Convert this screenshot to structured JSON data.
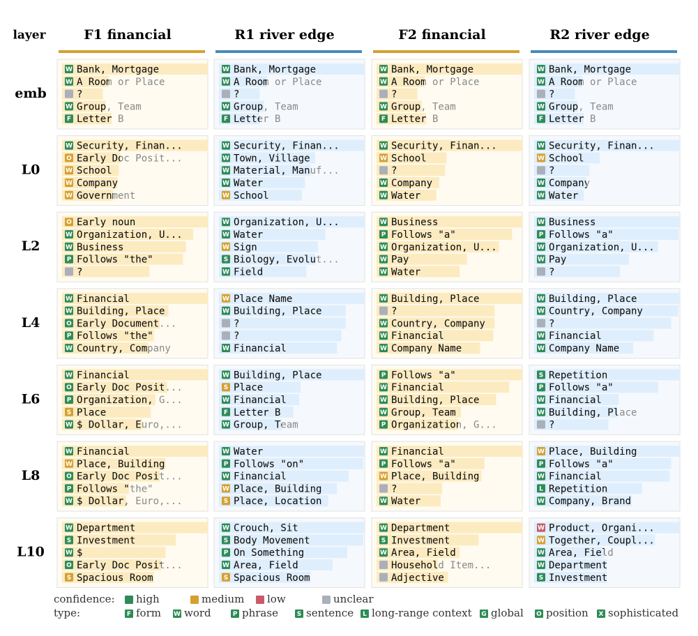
{
  "header": {
    "corner": "layer",
    "columns": [
      {
        "label": "F1 financial",
        "color": "#d4a030",
        "bar": "#fcebc0",
        "bg": "#fffbf0"
      },
      {
        "label": "R1 river edge",
        "color": "#4a8ab8",
        "bar": "#dfeefc",
        "bg": "#f5f9fd"
      },
      {
        "label": "F2 financial",
        "color": "#d4a030",
        "bar": "#fcebc0",
        "bg": "#fffbf0"
      },
      {
        "label": "R2 river edge",
        "color": "#4a8ab8",
        "bar": "#dfeefc",
        "bg": "#f5f9fd"
      }
    ]
  },
  "rows": [
    {
      "label": "emb",
      "cells": [
        [
          [
            "W",
            "high",
            "Bank, Mortgage",
            1.0
          ],
          [
            "W",
            "high",
            "A Room or Place",
            0.32
          ],
          [
            null,
            "unclear",
            "?",
            0.28
          ],
          [
            "W",
            "high",
            "Group, Team",
            0.3
          ],
          [
            "F",
            "high",
            "Letter B",
            0.34
          ]
        ],
        [
          [
            "W",
            "high",
            "Bank, Mortgage",
            1.0
          ],
          [
            "W",
            "high",
            "A Room or Place",
            0.33
          ],
          [
            null,
            "unclear",
            "?",
            0.28
          ],
          [
            "W",
            "high",
            "Group, Team",
            0.31
          ],
          [
            "F",
            "high",
            "Letter B",
            0.28
          ]
        ],
        [
          [
            "W",
            "high",
            "Bank, Mortgage",
            1.0
          ],
          [
            "W",
            "high",
            "A Room or Place",
            0.33
          ],
          [
            null,
            "unclear",
            "?",
            0.28
          ],
          [
            "W",
            "high",
            "Group, Team",
            0.31
          ],
          [
            "F",
            "high",
            "Letter B",
            0.34
          ]
        ],
        [
          [
            "W",
            "high",
            "Bank, Mortgage",
            1.0
          ],
          [
            "W",
            "high",
            "A Room or Place",
            0.33
          ],
          [
            null,
            "unclear",
            "?",
            0.28
          ],
          [
            "W",
            "high",
            "Group, Team",
            0.3
          ],
          [
            "F",
            "high",
            "Letter B",
            0.34
          ]
        ]
      ]
    },
    {
      "label": "L0",
      "cells": [
        [
          [
            "W",
            "high",
            "Security, Finan...",
            1.0
          ],
          [
            "O",
            "medium",
            "Early Doc Posit...",
            0.4
          ],
          [
            "W",
            "medium",
            "School",
            0.39
          ],
          [
            "W",
            "medium",
            "Company",
            0.38
          ],
          [
            "W",
            "medium",
            "Government",
            0.35
          ]
        ],
        [
          [
            "W",
            "high",
            "Security, Finan...",
            1.0
          ],
          [
            "W",
            "high",
            "Town, Village",
            0.66
          ],
          [
            "W",
            "high",
            "Material, Manuf...",
            0.63
          ],
          [
            "W",
            "high",
            "Water",
            0.59
          ],
          [
            "W",
            "medium",
            "School",
            0.57
          ]
        ],
        [
          [
            "W",
            "high",
            "Security, Finan...",
            1.0
          ],
          [
            "W",
            "medium",
            "School",
            0.48
          ],
          [
            null,
            "unclear",
            "?",
            0.47
          ],
          [
            "W",
            "high",
            "Company",
            0.43
          ],
          [
            "W",
            "high",
            "Water",
            0.41
          ]
        ],
        [
          [
            "W",
            "high",
            "Security, Finan...",
            1.0
          ],
          [
            "W",
            "medium",
            "School",
            0.45
          ],
          [
            null,
            "unclear",
            "?",
            0.38
          ],
          [
            "W",
            "high",
            "Company",
            0.36
          ],
          [
            "W",
            "high",
            "Water",
            0.34
          ]
        ]
      ]
    },
    {
      "label": "L2",
      "cells": [
        [
          [
            "O",
            "medium",
            "Early noun",
            1.0
          ],
          [
            "W",
            "high",
            "Organization, U...",
            0.9
          ],
          [
            "W",
            "high",
            "Business",
            0.85
          ],
          [
            "P",
            "high",
            "Follows \"the\"",
            0.83
          ],
          [
            null,
            "unclear",
            "?",
            0.6
          ]
        ],
        [
          [
            "W",
            "high",
            "Organization, U...",
            1.0
          ],
          [
            "W",
            "high",
            "Water",
            0.73
          ],
          [
            "W",
            "medium",
            "Sign",
            0.68
          ],
          [
            "S",
            "high",
            "Biology, Evolut...",
            0.66
          ],
          [
            "W",
            "high",
            "Field",
            0.6
          ]
        ],
        [
          [
            "W",
            "high",
            "Business",
            1.0
          ],
          [
            "P",
            "high",
            "Follows \"a\"",
            0.93
          ],
          [
            "W",
            "high",
            "Organization, U...",
            0.84
          ],
          [
            "W",
            "high",
            "Pay",
            0.62
          ],
          [
            "W",
            "high",
            "Water",
            0.57
          ]
        ],
        [
          [
            "W",
            "high",
            "Business",
            1.0
          ],
          [
            "P",
            "high",
            "Follows \"a\"",
            0.99
          ],
          [
            "W",
            "high",
            "Organization, U...",
            0.85
          ],
          [
            "W",
            "high",
            "Pay",
            0.65
          ],
          [
            null,
            "unclear",
            "?",
            0.59
          ]
        ]
      ]
    },
    {
      "label": "L4",
      "cells": [
        [
          [
            "W",
            "high",
            "Financial",
            1.0
          ],
          [
            "W",
            "high",
            "Building, Place",
            0.73
          ],
          [
            "O",
            "high",
            "Early Document...",
            0.67
          ],
          [
            "P",
            "high",
            "Follows \"the\"",
            0.63
          ],
          [
            "W",
            "high",
            "Country, Company",
            0.59
          ]
        ],
        [
          [
            "W",
            "medium",
            "Place Name",
            1.0
          ],
          [
            "W",
            "high",
            "Building, Place",
            0.87
          ],
          [
            null,
            "unclear",
            "?",
            0.87
          ],
          [
            null,
            "unclear",
            "?",
            0.84
          ],
          [
            "W",
            "high",
            "Financial",
            0.81
          ]
        ],
        [
          [
            "W",
            "high",
            "Building, Place",
            1.0
          ],
          [
            null,
            "unclear",
            "?",
            0.81
          ],
          [
            "W",
            "high",
            "Country, Company",
            0.81
          ],
          [
            "W",
            "high",
            "Financial",
            0.8
          ],
          [
            "W",
            "high",
            "Company Name",
            0.71
          ]
        ],
        [
          [
            "W",
            "high",
            "Building, Place",
            1.0
          ],
          [
            "W",
            "high",
            "Country, Company",
            0.99
          ],
          [
            null,
            "unclear",
            "?",
            0.94
          ],
          [
            "W",
            "high",
            "Financial",
            0.82
          ],
          [
            "W",
            "high",
            "Company Name",
            0.68
          ]
        ]
      ]
    },
    {
      "label": "L6",
      "cells": [
        [
          [
            "W",
            "high",
            "Financial",
            1.0
          ],
          [
            "O",
            "high",
            "Early Doc Posit...",
            0.72
          ],
          [
            "P",
            "high",
            "Organization, G...",
            0.64
          ],
          [
            "S",
            "medium",
            "Place",
            0.61
          ],
          [
            "W",
            "high",
            "$ Dollar, Euro,...",
            0.55
          ]
        ],
        [
          [
            "W",
            "high",
            "Building, Place",
            1.0
          ],
          [
            "S",
            "medium",
            "Place",
            0.56
          ],
          [
            "W",
            "high",
            "Financial",
            0.55
          ],
          [
            "F",
            "high",
            "Letter B",
            0.51
          ],
          [
            "W",
            "high",
            "Group, Team",
            0.43
          ]
        ],
        [
          [
            "P",
            "high",
            "Follows \"a\"",
            1.0
          ],
          [
            "W",
            "high",
            "Financial",
            0.91
          ],
          [
            "W",
            "high",
            "Building, Place",
            0.82
          ],
          [
            "W",
            "high",
            "Group, Team",
            0.58
          ],
          [
            "P",
            "high",
            "Organization, G...",
            0.56
          ]
        ],
        [
          [
            "S",
            "high",
            "Repetition",
            1.0
          ],
          [
            "P",
            "high",
            "Follows \"a\"",
            0.85
          ],
          [
            "W",
            "high",
            "Financial",
            0.58
          ],
          [
            "W",
            "high",
            "Building, Place",
            0.57
          ],
          [
            null,
            "unclear",
            "?",
            0.51
          ]
        ]
      ]
    },
    {
      "label": "L8",
      "cells": [
        [
          [
            "W",
            "high",
            "Financial",
            1.0
          ],
          [
            "W",
            "medium",
            "Place, Building",
            0.71
          ],
          [
            "O",
            "high",
            "Early Doc Posit...",
            0.67
          ],
          [
            "P",
            "high",
            "Follows \"the\"",
            0.46
          ],
          [
            "W",
            "high",
            "$ Dollar, Euro,...",
            0.44
          ]
        ],
        [
          [
            "W",
            "high",
            "Water",
            1.0
          ],
          [
            "P",
            "high",
            "Follows \"on\"",
            0.99
          ],
          [
            "W",
            "high",
            "Financial",
            0.89
          ],
          [
            "W",
            "medium",
            "Place, Building",
            0.81
          ],
          [
            "S",
            "medium",
            "Place, Location",
            0.75
          ]
        ],
        [
          [
            "W",
            "high",
            "Financial",
            1.0
          ],
          [
            "P",
            "high",
            "Follows \"a\"",
            0.74
          ],
          [
            "W",
            "medium",
            "Place, Building",
            0.72
          ],
          [
            null,
            "unclear",
            "?",
            0.45
          ],
          [
            "W",
            "high",
            "Water",
            0.44
          ]
        ],
        [
          [
            "W",
            "medium",
            "Place, Building",
            1.0
          ],
          [
            "P",
            "high",
            "Follows \"a\"",
            0.94
          ],
          [
            "W",
            "high",
            "Financial",
            0.93
          ],
          [
            "L",
            "high",
            "Repetition",
            0.74
          ],
          [
            "W",
            "high",
            "Company, Brand",
            0.67
          ]
        ]
      ]
    },
    {
      "label": "L10",
      "cells": [
        [
          [
            "W",
            "high",
            "Department",
            1.0
          ],
          [
            "S",
            "high",
            "Investment",
            0.78
          ],
          [
            "W",
            "high",
            "$",
            0.71
          ],
          [
            "O",
            "high",
            "Early Doc Posit...",
            0.68
          ],
          [
            "S",
            "medium",
            "Spacious Room",
            0.63
          ]
        ],
        [
          [
            "W",
            "high",
            "Crouch, Sit",
            1.0
          ],
          [
            "S",
            "high",
            "Body Movement",
            0.99
          ],
          [
            "P",
            "high",
            "On Something",
            0.88
          ],
          [
            "W",
            "high",
            "Area, Field",
            0.78
          ],
          [
            "S",
            "medium",
            "Spacious Room",
            0.63
          ]
        ],
        [
          [
            "W",
            "high",
            "Department",
            1.0
          ],
          [
            "S",
            "high",
            "Investment",
            0.7
          ],
          [
            "W",
            "high",
            "Area, Field",
            0.57
          ],
          [
            null,
            "unclear",
            "Household Item...",
            0.42
          ],
          [
            null,
            "unclear",
            "Adjective",
            0.49
          ]
        ],
        [
          [
            "W",
            "low",
            "Product, Organi...",
            1.0
          ],
          [
            "W",
            "medium",
            "Together, Coupl...",
            0.83
          ],
          [
            "W",
            "high",
            "Area, Field",
            0.48
          ],
          [
            "W",
            "high",
            "Department",
            0.5
          ],
          [
            "S",
            "high",
            "Investment",
            0.5
          ]
        ]
      ]
    }
  ],
  "legend": {
    "confidence_label": "confidence:",
    "confidence": [
      {
        "label": "high",
        "color": "#2e8b57"
      },
      {
        "label": "medium",
        "color": "#d4a030"
      },
      {
        "label": "low",
        "color": "#c85a6a"
      },
      {
        "label": "unclear",
        "color": "#aab0ba"
      }
    ],
    "type_label": "type:",
    "types": [
      {
        "letter": "F",
        "label": "form"
      },
      {
        "letter": "W",
        "label": "word"
      },
      {
        "letter": "P",
        "label": "phrase"
      },
      {
        "letter": "S",
        "label": "sentence"
      },
      {
        "letter": "L",
        "label": "long-range context"
      },
      {
        "letter": "G",
        "label": "global"
      },
      {
        "letter": "O",
        "label": "position"
      },
      {
        "letter": "X",
        "label": "sophisticated"
      }
    ]
  }
}
